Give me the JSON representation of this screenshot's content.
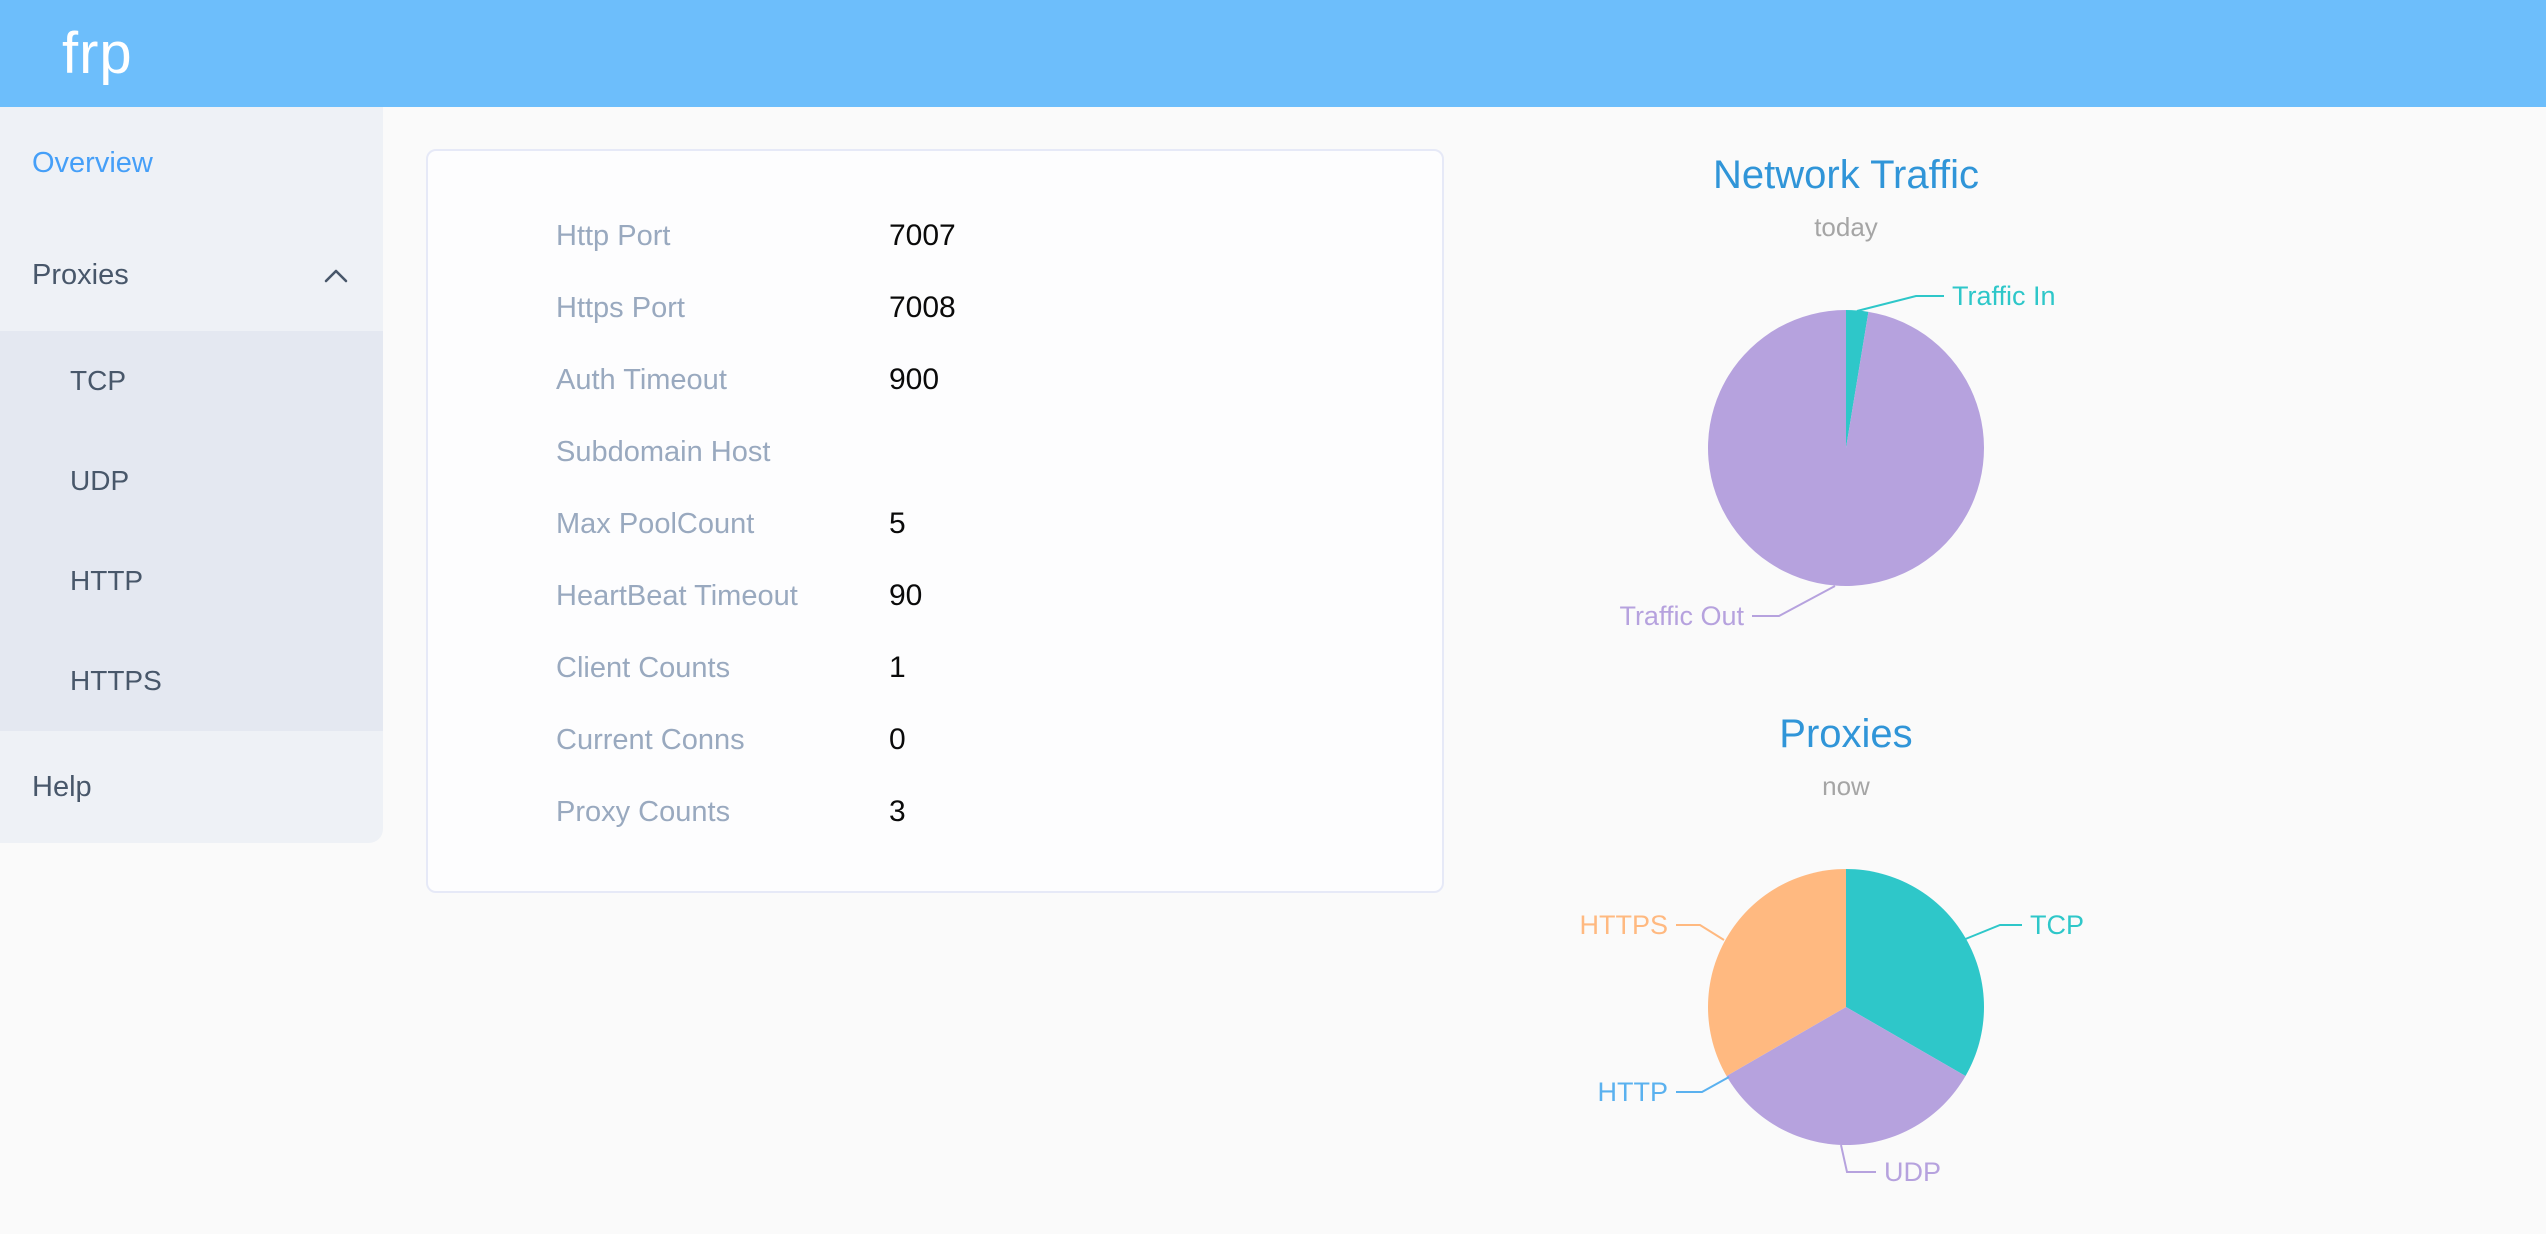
{
  "header": {
    "logo": "frp"
  },
  "sidebar": {
    "items": [
      {
        "id": "overview",
        "label": "Overview",
        "active": true
      },
      {
        "id": "proxies",
        "label": "Proxies",
        "expanded": true,
        "children": [
          {
            "id": "tcp",
            "label": "TCP"
          },
          {
            "id": "udp",
            "label": "UDP"
          },
          {
            "id": "http",
            "label": "HTTP"
          },
          {
            "id": "https",
            "label": "HTTPS"
          }
        ]
      },
      {
        "id": "help",
        "label": "Help",
        "active": false
      }
    ]
  },
  "server_config": {
    "rows": [
      {
        "label": "Http Port",
        "value": "7007"
      },
      {
        "label": "Https Port",
        "value": "7008"
      },
      {
        "label": "Auth Timeout",
        "value": "900"
      },
      {
        "label": "Subdomain Host",
        "value": ""
      },
      {
        "label": "Max PoolCount",
        "value": "5"
      },
      {
        "label": "HeartBeat Timeout",
        "value": "90"
      },
      {
        "label": "Client Counts",
        "value": "1"
      },
      {
        "label": "Current Conns",
        "value": "0"
      },
      {
        "label": "Proxy Counts",
        "value": "3"
      }
    ]
  },
  "chart_data": [
    {
      "type": "pie",
      "title": "Network Traffic",
      "subtitle": "today",
      "legend_position": "outside-labels-with-leader-lines",
      "slices": [
        {
          "label": "Traffic In",
          "percent": 2.6,
          "color": "#2ec7c9"
        },
        {
          "label": "Traffic Out",
          "percent": 97.4,
          "color": "#b6a2de"
        }
      ]
    },
    {
      "type": "pie",
      "title": "Proxies",
      "subtitle": "now",
      "legend_position": "outside-labels-with-leader-lines",
      "slices": [
        {
          "label": "TCP",
          "value": 1,
          "color": "#2ec7c9"
        },
        {
          "label": "UDP",
          "value": 1,
          "color": "#b6a2de"
        },
        {
          "label": "HTTP",
          "value": 0,
          "color": "#5ab1ef"
        },
        {
          "label": "HTTPS",
          "value": 1,
          "color": "#ffb980"
        }
      ]
    }
  ],
  "colors": {
    "header_bg": "#6dbefb",
    "sidebar_bg": "#eef1f6",
    "submenu_bg": "#e4e8f1",
    "menu_text": "#48576a",
    "active_menu_text": "#459ff8",
    "chart_title_blue": "#3095d8",
    "chart_subtitle_gray": "#a5a5a5",
    "config_label_gray": "#99a9bf"
  }
}
